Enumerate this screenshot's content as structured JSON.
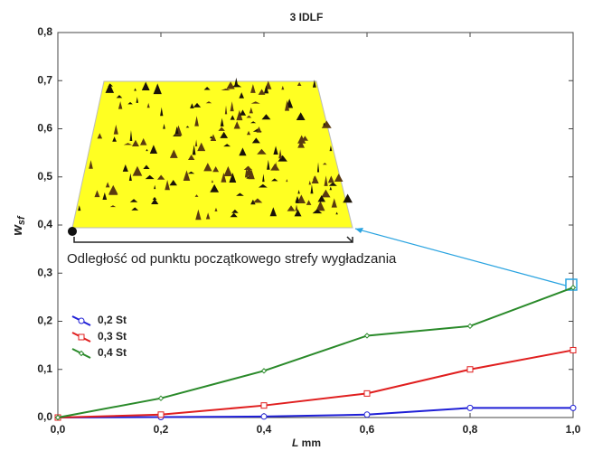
{
  "chart_data": {
    "type": "line",
    "title": "3 IDLF",
    "x_label": "L",
    "x_label_unit": "mm",
    "y_label": "w",
    "y_label_sub": "sf",
    "annotation": "Odległość od punktu początkowego strefy wygładzania",
    "x": [
      0,
      0.2,
      0.4,
      0.6,
      0.8,
      1.0
    ],
    "series": [
      {
        "name": "0,2 St",
        "color": "#1f1fd6",
        "marker": "circle",
        "values": [
          0,
          0.001,
          0.002,
          0.006,
          0.02,
          0.02
        ]
      },
      {
        "name": "0,3 St",
        "color": "#e01f1f",
        "marker": "square",
        "values": [
          0,
          0.006,
          0.025,
          0.05,
          0.1,
          0.14
        ]
      },
      {
        "name": "0,4 St",
        "color": "#2a8a2a",
        "marker": "diamond",
        "values": [
          0,
          0.04,
          0.097,
          0.17,
          0.19,
          0.27
        ]
      }
    ],
    "xlim": [
      0,
      1.0
    ],
    "xticks": [
      {
        "value": 0,
        "label": "0,0"
      },
      {
        "value": 0.2,
        "label": "0,2"
      },
      {
        "value": 0.4,
        "label": "0,4"
      },
      {
        "value": 0.6,
        "label": "0,6"
      },
      {
        "value": 0.8,
        "label": "0,8"
      },
      {
        "value": 1.0,
        "label": "1,0"
      }
    ],
    "ylim": [
      0,
      0.8
    ],
    "yticks": [
      {
        "value": 0,
        "label": "0,0"
      },
      {
        "value": 0.1,
        "label": "0,1"
      },
      {
        "value": 0.2,
        "label": "0,2"
      },
      {
        "value": 0.3,
        "label": "0,3"
      },
      {
        "value": 0.4,
        "label": "0,4"
      },
      {
        "value": 0.5,
        "label": "0,5"
      },
      {
        "value": 0.6,
        "label": "0,6"
      },
      {
        "value": 0.7,
        "label": "0,7"
      },
      {
        "value": 0.8,
        "label": "0,8"
      }
    ],
    "grid": false,
    "legend": "lower-left"
  }
}
